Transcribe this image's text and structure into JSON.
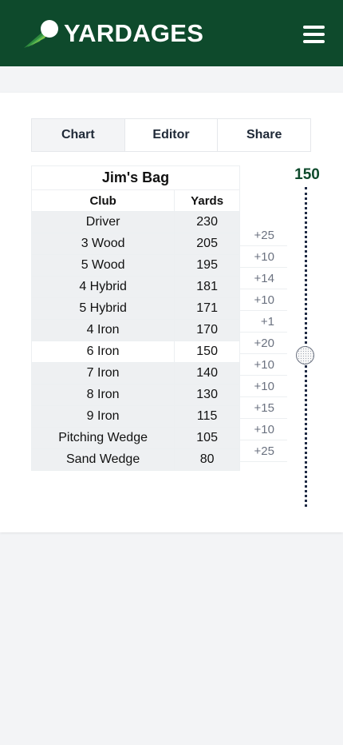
{
  "header": {
    "brand": "YARDAGES",
    "logo_icon": "golf-ball-comet-icon",
    "menu_icon": "hamburger-menu-icon",
    "background": "#0e4a2c"
  },
  "tabs": [
    {
      "label": "Chart",
      "active": true
    },
    {
      "label": "Editor",
      "active": false
    },
    {
      "label": "Share",
      "active": false
    }
  ],
  "bag": {
    "title": "Jim's Bag",
    "columns": [
      "Club",
      "Yards"
    ],
    "rows": [
      {
        "club": "Driver",
        "yards": "230"
      },
      {
        "club": "3 Wood",
        "yards": "205"
      },
      {
        "club": "5 Wood",
        "yards": "195"
      },
      {
        "club": "4 Hybrid",
        "yards": "181"
      },
      {
        "club": "5 Hybrid",
        "yards": "171"
      },
      {
        "club": "4 Iron",
        "yards": "170"
      },
      {
        "club": "6 Iron",
        "yards": "150"
      },
      {
        "club": "7 Iron",
        "yards": "140"
      },
      {
        "club": "8 Iron",
        "yards": "130"
      },
      {
        "club": "9 Iron",
        "yards": "115"
      },
      {
        "club": "Pitching Wedge",
        "yards": "105"
      },
      {
        "club": "Sand Wedge",
        "yards": "80"
      }
    ],
    "selected_index": 6
  },
  "gaps": [
    "+25",
    "+10",
    "+14",
    "+10",
    "+1",
    "+20",
    "+10",
    "+10",
    "+15",
    "+10",
    "+25"
  ],
  "distance_slider": {
    "value": "150",
    "icon": "golf-ball-icon",
    "accent": "#0e4a2c"
  }
}
